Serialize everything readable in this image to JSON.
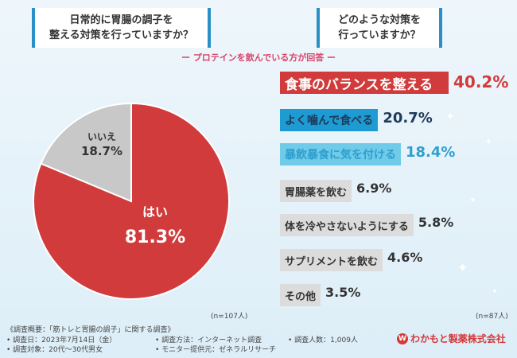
{
  "questions": {
    "q1_line1": "日常的に胃腸の調子を",
    "q1_line2": "整える対策を行っていますか？",
    "q2_line1": "どのような対策を",
    "q2_line2": "行っていますか？"
  },
  "subtitle": "ー プロテインを飲んでいる方が回答 ー",
  "chart_data": [
    {
      "type": "pie",
      "title": "日常的に胃腸の調子を整える対策を行っていますか？",
      "categories": [
        "はい",
        "いいえ"
      ],
      "values": [
        81.3,
        18.7
      ],
      "value_labels": [
        "81.3%",
        "18.7%"
      ],
      "colors": [
        "#d13b3b",
        "#c8c8c8"
      ],
      "n_label": "(n=107人)"
    },
    {
      "type": "bar",
      "orientation": "horizontal",
      "title": "どのような対策を行っていますか？",
      "categories": [
        "食事のバランスを整える",
        "よく噛んで食べる",
        "暴飲暴食に気を付ける",
        "胃腸薬を飲む",
        "体を冷やさないようにする",
        "サプリメントを飲む",
        "その他"
      ],
      "values": [
        40.2,
        20.7,
        18.4,
        6.9,
        5.8,
        4.6,
        3.5
      ],
      "value_labels": [
        "40.2%",
        "20.7%",
        "18.4%",
        "6.9%",
        "5.8%",
        "4.6%",
        "3.5%"
      ],
      "colors": [
        "#d13b3b",
        "#1e9bd2",
        "#6fcbe8",
        "#dcdcdc",
        "#dcdcdc",
        "#dcdcdc",
        "#dcdcdc"
      ],
      "text_colors": [
        "#ffffff",
        "#1f3a5a",
        "#2e9fcf",
        "#333333",
        "#333333",
        "#333333",
        "#333333"
      ],
      "value_colors": [
        "#d13b3b",
        "#1f3a5a",
        "#2e9fcf",
        "#333333",
        "#333333",
        "#333333",
        "#333333"
      ],
      "n_label": "(n=87人)"
    }
  ],
  "notes": {
    "survey_title": "《調査概要：「筋トレと胃腸の調子」に関する調査》",
    "date": "• 調査日：2023年7月14日（金）",
    "method": "• 調査方法：インターネット調査",
    "count": "• 調査人数：1,009人",
    "target": "• 調査対象：20代〜30代男女",
    "provider": "• モニター提供元：ゼネラルリサーチ"
  },
  "logo": {
    "text": "わかもと製薬株式会社",
    "mark": "W"
  }
}
